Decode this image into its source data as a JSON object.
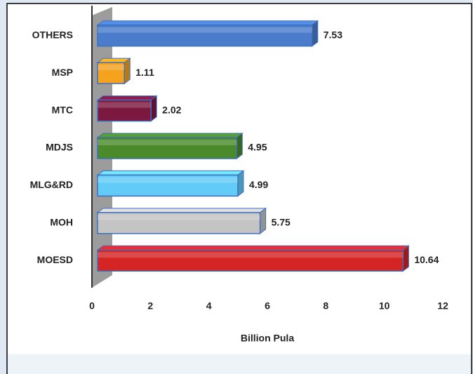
{
  "chart_data": {
    "type": "bar",
    "orientation": "horizontal",
    "categories": [
      "OTHERS",
      "MSP",
      "MTC",
      "MDJS",
      "MLG&RD",
      "MOH",
      "MOESD"
    ],
    "values": [
      7.53,
      1.11,
      2.02,
      4.95,
      4.99,
      5.75,
      10.64
    ],
    "colors": [
      "#4a7ccb",
      "#f5a21e",
      "#7d1840",
      "#4b8a2b",
      "#63cbf7",
      "#c4c4c4",
      "#d42424"
    ],
    "xlabel": "Billion Pula",
    "xlim": [
      0,
      12
    ],
    "xticks": [
      0,
      2,
      4,
      6,
      8,
      10,
      12
    ],
    "grid": false
  }
}
